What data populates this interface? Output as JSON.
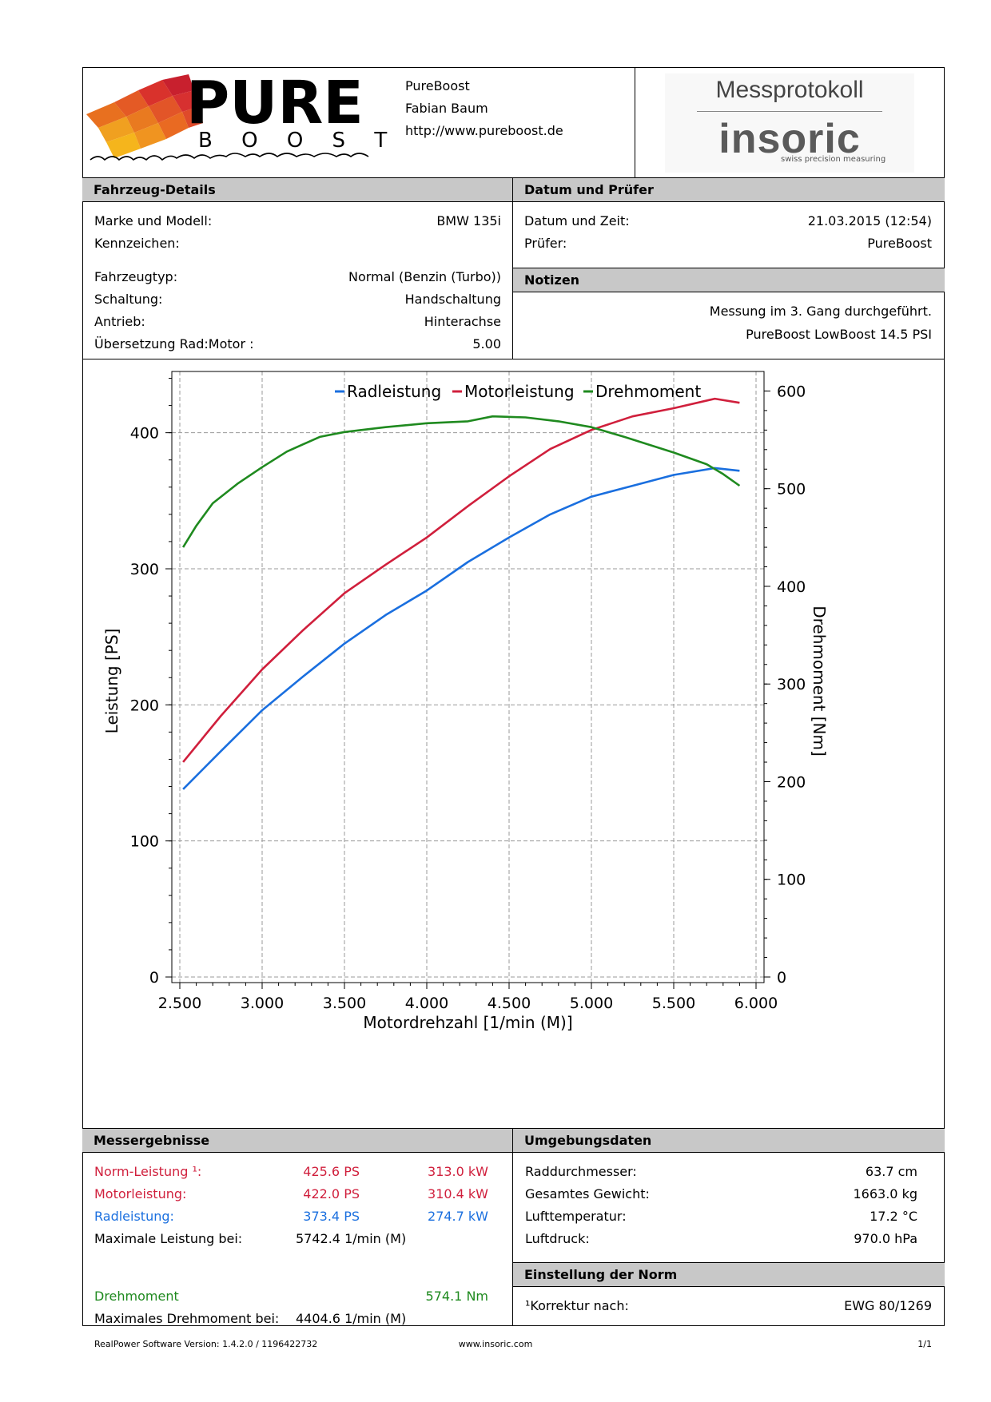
{
  "header": {
    "company_lines": [
      "PureBoost",
      "Fabian Baum",
      "http://www.pureboost.de"
    ],
    "logo_word": "PURE",
    "logo_sub": "B O O S T",
    "logo_signature": "www.pureboost.de",
    "protocol_title": "Messprotokoll",
    "brand_logo": "insoric",
    "brand_tagline": "swiss precision measuring"
  },
  "vehicle": {
    "title": "Fahrzeug-Details",
    "rows": [
      {
        "label": "Marke und Modell:",
        "value": "BMW 135i"
      },
      {
        "label": "Kennzeichen:",
        "value": ""
      },
      {
        "label": "Fahrzeugtyp:",
        "value": "Normal (Benzin (Turbo))"
      },
      {
        "label": "Schaltung:",
        "value": "Handschaltung"
      },
      {
        "label": "Antrieb:",
        "value": "Hinterachse"
      },
      {
        "label": "Übersetzung Rad:Motor :",
        "value": "5.00"
      }
    ]
  },
  "datum": {
    "title": "Datum und Prüfer",
    "rows": [
      {
        "label": "Datum und Zeit:",
        "value": "21.03.2015 (12:54)"
      },
      {
        "label": "Prüfer:",
        "value": "PureBoost"
      }
    ]
  },
  "notes": {
    "title": "Notizen",
    "lines": [
      "Messung im 3. Gang durchgeführt.",
      "PureBoost LowBoost 14.5 PSI"
    ]
  },
  "chart_data": {
    "type": "line",
    "title": "",
    "xlabel": "Motordrehzahl [1/min (M)]",
    "ylabel": "Leistung [PS]",
    "y2label": "Drehmoment [Nm]",
    "xlim": [
      2500,
      6000
    ],
    "ylim": [
      0,
      445
    ],
    "y2lim": [
      0,
      620
    ],
    "x_ticks": [
      "2.500",
      "3.000",
      "3.500",
      "4.000",
      "4.500",
      "5.000",
      "5.500",
      "6.000"
    ],
    "y_ticks": [
      "0",
      "100",
      "200",
      "300",
      "400"
    ],
    "y2_ticks": [
      "0",
      "100",
      "200",
      "300",
      "400",
      "500",
      "600"
    ],
    "legend_position": "top",
    "grid": true,
    "series": [
      {
        "name": "Radleistung",
        "axis": "left",
        "color": "#1a6fdf",
        "x": [
          2520,
          2750,
          3000,
          3250,
          3500,
          3750,
          4000,
          4250,
          4500,
          4750,
          5000,
          5250,
          5500,
          5750,
          5900
        ],
        "y": [
          138,
          166,
          196,
          221,
          245,
          266,
          284,
          305,
          323,
          340,
          353,
          361,
          369,
          374,
          372
        ]
      },
      {
        "name": "Motorleistung",
        "axis": "left",
        "color": "#d01f3c",
        "x": [
          2520,
          2750,
          3000,
          3250,
          3500,
          3750,
          4000,
          4250,
          4500,
          4750,
          5000,
          5250,
          5500,
          5750,
          5900
        ],
        "y": [
          158,
          192,
          226,
          255,
          282,
          303,
          323,
          346,
          368,
          388,
          402,
          412,
          418,
          425,
          422
        ]
      },
      {
        "name": "Drehmoment",
        "axis": "right",
        "color": "#1f8a1f",
        "x": [
          2520,
          2600,
          2700,
          2850,
          3000,
          3150,
          3350,
          3500,
          3750,
          4000,
          4250,
          4400,
          4600,
          4800,
          5000,
          5200,
          5500,
          5700,
          5800,
          5900
        ],
        "y": [
          440,
          462,
          485,
          505,
          522,
          538,
          553,
          558,
          563,
          567,
          569,
          574,
          573,
          569,
          563,
          553,
          537,
          525,
          515,
          503
        ]
      }
    ]
  },
  "results": {
    "title": "Messergebnisse",
    "rows": [
      {
        "label": "Norm-Leistung ¹:",
        "ps": "425.6 PS",
        "kw": "313.0 kW",
        "color": "red"
      },
      {
        "label": "Motorleistung:",
        "ps": "422.0 PS",
        "kw": "310.4 kW",
        "color": "red"
      },
      {
        "label": "Radleistung:",
        "ps": "373.4 PS",
        "kw": "274.7 kW",
        "color": "blue"
      }
    ],
    "max_power_label": "Maximale Leistung bei:",
    "max_power_value": "5742.4 1/min (M)",
    "torque_label": "Drehmoment",
    "torque_value": "574.1 Nm",
    "max_torque_label": "Maximales Drehmoment bei:",
    "max_torque_value": "4404.6 1/min (M)"
  },
  "ambient": {
    "title": "Umgebungsdaten",
    "rows": [
      {
        "label": "Raddurchmesser:",
        "value": "63.7 cm"
      },
      {
        "label": "Gesamtes Gewicht:",
        "value": "1663.0 kg"
      },
      {
        "label": "Lufttemperatur:",
        "value": "17.2 °C"
      },
      {
        "label": "Luftdruck:",
        "value": "970.0 hPa"
      }
    ]
  },
  "norm": {
    "title": "Einstellung der Norm",
    "label": "¹Korrektur nach:",
    "value": "EWG 80/1269"
  },
  "footer": {
    "software": "RealPower Software Version: 1.4.2.0 / 1196422732",
    "website": "www.insoric.com",
    "page": "1/1"
  }
}
